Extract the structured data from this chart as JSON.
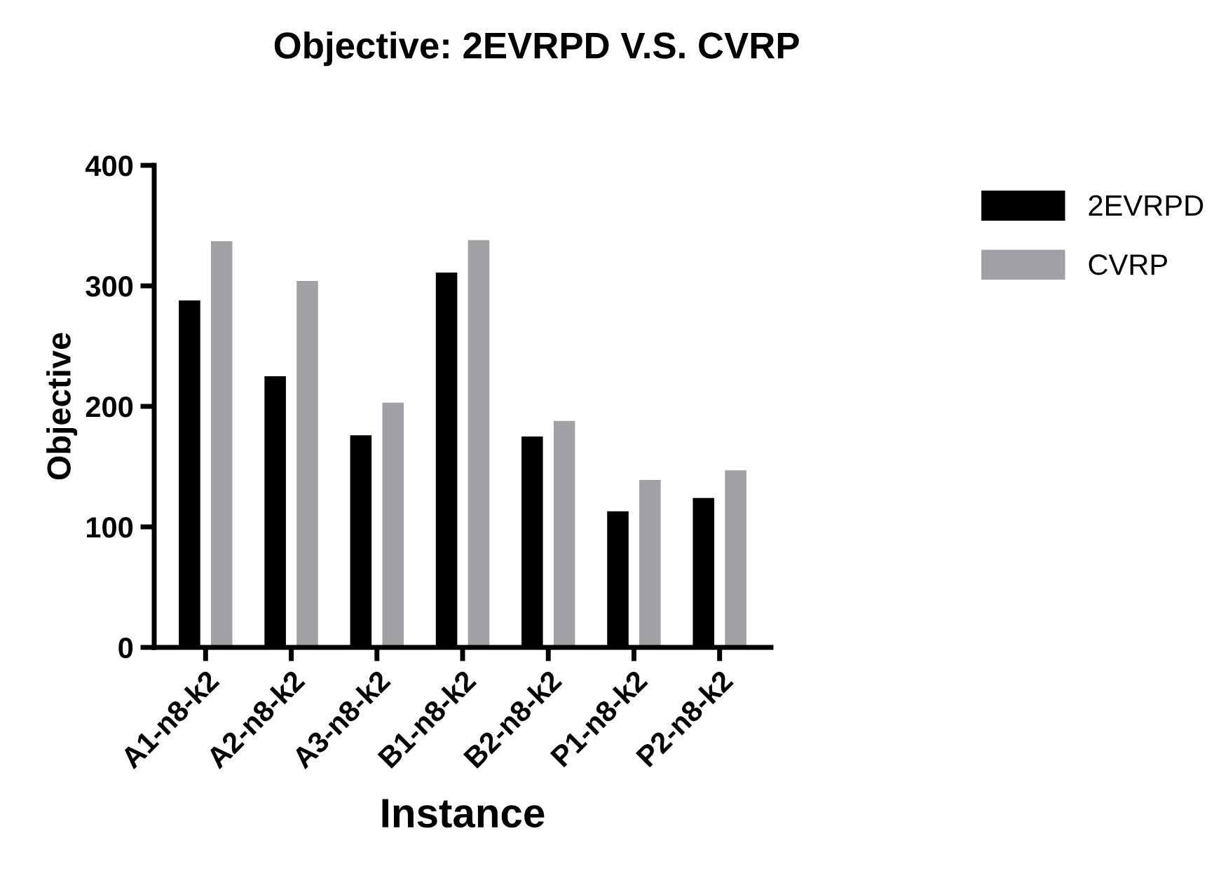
{
  "chart_data": {
    "type": "bar",
    "title": "Objective: 2EVRPD V.S. CVRP",
    "xlabel": "Instance",
    "ylabel": "Objective",
    "categories": [
      "A1-n8-k2",
      "A2-n8-k2",
      "A3-n8-k2",
      "B1-n8-k2",
      "B2-n8-k2",
      "P1-n8-k2",
      "P2-n8-k2"
    ],
    "series": [
      {
        "name": "2EVRPD",
        "color": "#000000",
        "values": [
          288,
          225,
          176,
          311,
          175,
          113,
          124
        ]
      },
      {
        "name": "CVRP",
        "color": "#a1a0a5",
        "values": [
          337,
          304,
          203,
          338,
          188,
          139,
          147
        ]
      }
    ],
    "ylim": [
      0,
      400
    ],
    "yticks": [
      0,
      100,
      200,
      300,
      400
    ],
    "grid": false,
    "legend": "top right"
  }
}
